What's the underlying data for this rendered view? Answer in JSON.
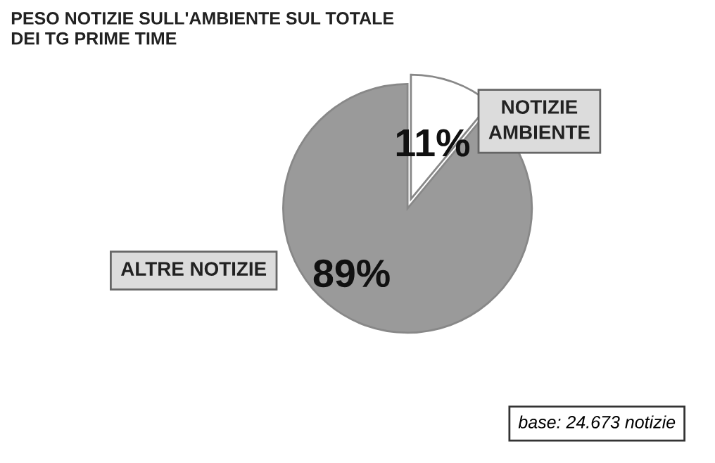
{
  "chart_data": {
    "type": "pie",
    "title": "PESO NOTIZIE SULL'AMBIENTE SUL TOTALE\nDEI TG PRIME TIME",
    "categories": [
      "NOTIZIE\nAMBIENTE",
      "ALTRE NOTIZIE"
    ],
    "values": [
      11,
      89
    ],
    "value_labels": [
      "11%",
      "89%"
    ],
    "colors": [
      "#ffffff",
      "#9a9a9a"
    ],
    "annotations": [
      "base: 24.673 notizie"
    ]
  }
}
